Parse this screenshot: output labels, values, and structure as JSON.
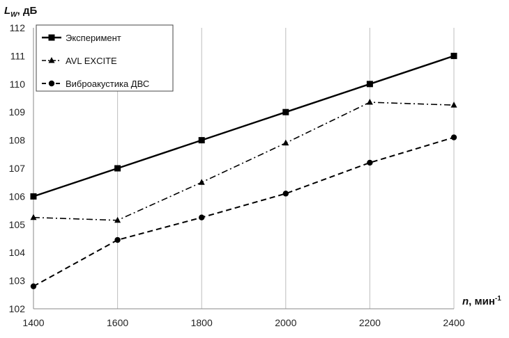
{
  "chart_data": {
    "type": "line",
    "x": [
      1400,
      1600,
      1800,
      2000,
      2200,
      2400
    ],
    "xlim": [
      1400,
      2400
    ],
    "ylim": [
      102,
      112
    ],
    "x_ticks": [
      1400,
      1600,
      1800,
      2000,
      2200,
      2400
    ],
    "y_ticks": [
      102,
      103,
      104,
      105,
      106,
      107,
      108,
      109,
      110,
      111,
      112
    ],
    "y_title_main": "L",
    "y_title_sub": "W",
    "y_title_unit": ", дБ",
    "x_title_main": "n",
    "x_title_unit": ", мин",
    "x_title_sup": "-1",
    "grid": "vertical",
    "legend_position": "top-left",
    "series": [
      {
        "name": "Эксперимент",
        "values": [
          106.0,
          107.0,
          108.0,
          109.0,
          110.0,
          111.0
        ],
        "color": "#000000",
        "dash": "solid",
        "marker": "square"
      },
      {
        "name": "AVL EXCITE",
        "values": [
          105.25,
          105.15,
          106.5,
          107.9,
          109.35,
          109.25
        ],
        "color": "#000000",
        "dash": "dashdot",
        "marker": "triangle"
      },
      {
        "name": "Виброакустика ДВС",
        "values": [
          102.8,
          104.45,
          105.25,
          106.1,
          107.2,
          108.1
        ],
        "color": "#000000",
        "dash": "dashed",
        "marker": "circle"
      }
    ]
  }
}
